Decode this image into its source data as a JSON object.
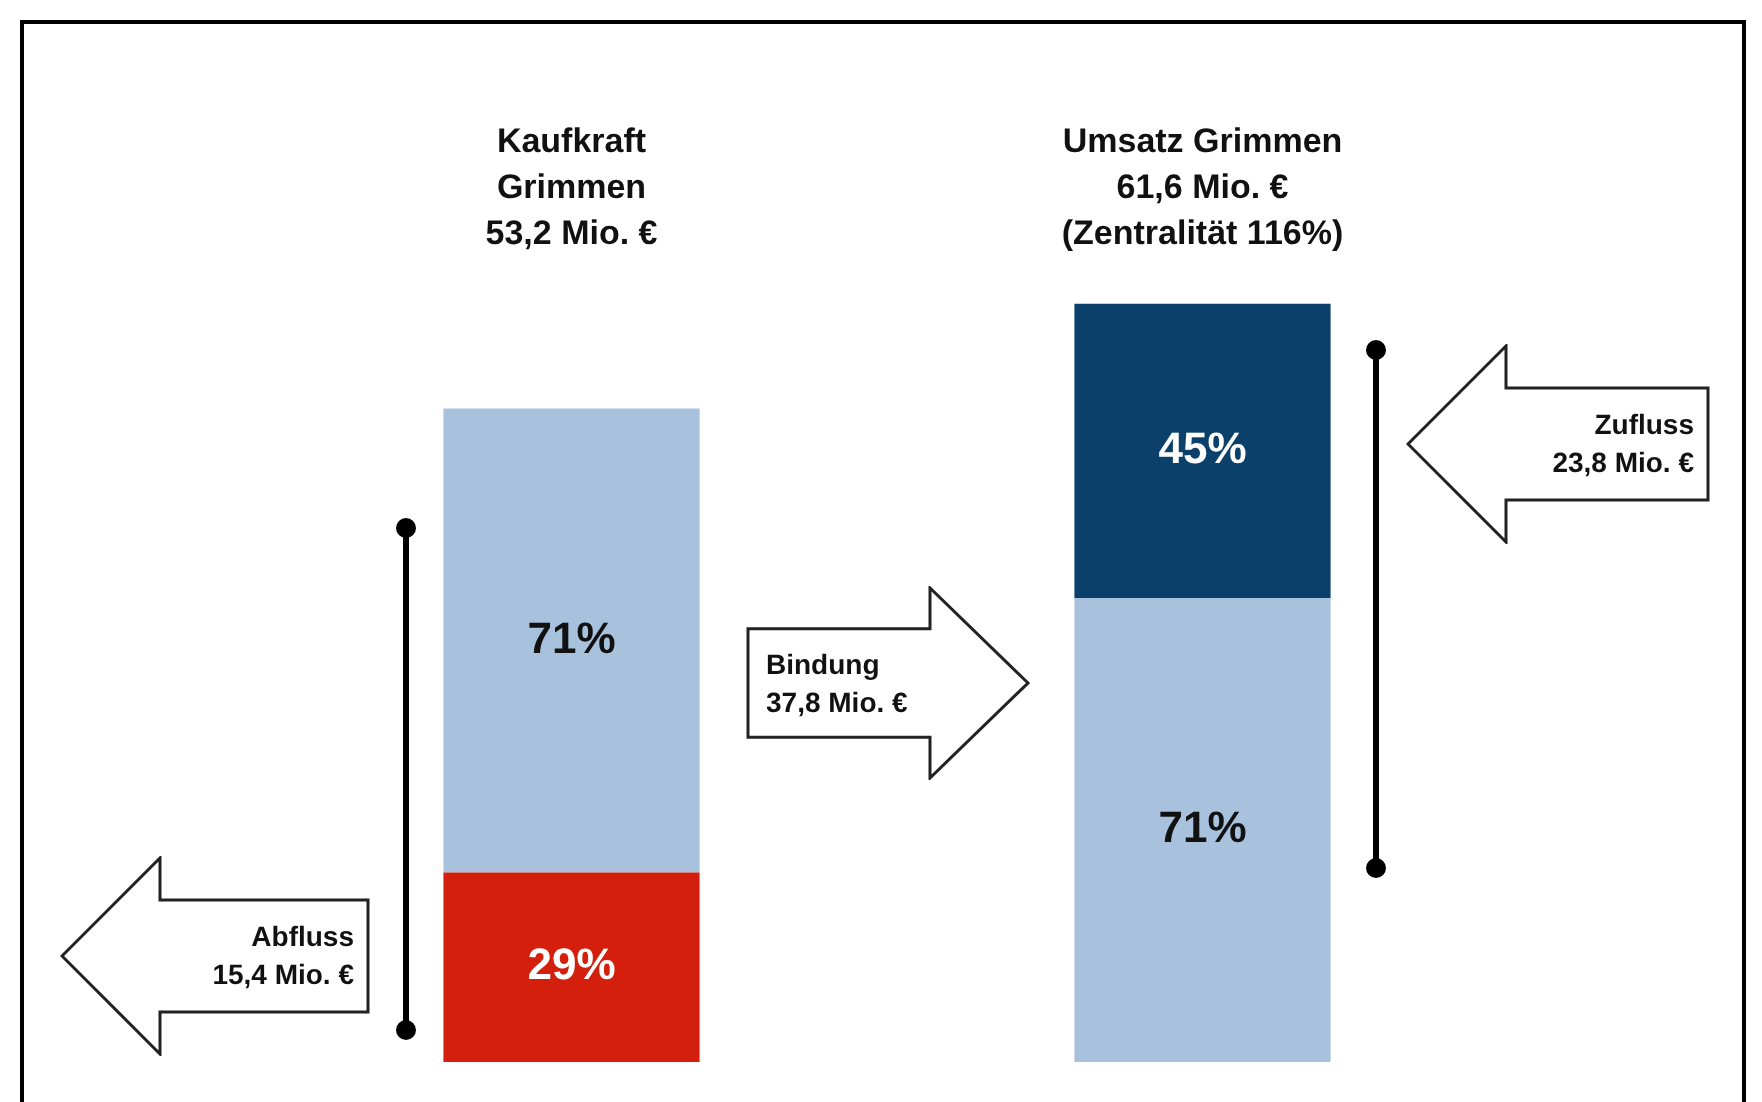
{
  "chart_data": {
    "type": "bar",
    "stacked": true,
    "categories": [
      "Kaufkraft\nGrimmen\n53,2 Mio. €",
      "Umsatz Grimmen\n61,6 Mio. €\n(Zentralität 116%)"
    ],
    "series": [
      {
        "color": "#d41f0c",
        "values": [
          29,
          null
        ],
        "value_labels": [
          "29%",
          null
        ]
      },
      {
        "color": "#a8c2de",
        "values": [
          71,
          71
        ],
        "value_labels": [
          "71%",
          "71%"
        ]
      },
      {
        "color": "#0b406b",
        "values": [
          null,
          45
        ],
        "value_labels": [
          null,
          "45%"
        ]
      }
    ],
    "annotations": [
      "Abfluss\n15,4 Mio. €",
      "Bindung\n37,8 Mio. €",
      "Zufluss\n23,8 Mio. €"
    ],
    "legend": false
  }
}
